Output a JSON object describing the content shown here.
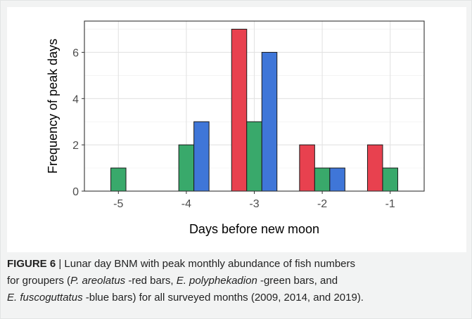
{
  "chart_data": {
    "type": "bar",
    "categories": [
      "-5",
      "-4",
      "-3",
      "-2",
      "-1"
    ],
    "series": [
      {
        "values": [
          0,
          0,
          7,
          2,
          2
        ],
        "color": "#e8414f"
      },
      {
        "values": [
          1,
          2,
          3,
          1,
          1
        ],
        "color": "#39a96b"
      },
      {
        "values": [
          0,
          3,
          6,
          1,
          0
        ],
        "color": "#3f76d8"
      }
    ],
    "xlabel": "Days before new moon",
    "ylabel": "Frequency of peak days",
    "ylim": [
      0,
      7.35
    ],
    "yticks": [
      0,
      2,
      4,
      6
    ],
    "grid": true,
    "legend": "none"
  },
  "caption": {
    "figure_label": "FIGURE 6",
    "separator": "|",
    "text_1": " Lunar day BNM with peak monthly abundance of fish numbers",
    "text_2": "for groupers (",
    "species_1": "P. areolatus",
    "text_3": " -red bars, ",
    "species_2": "E. polyphekadion",
    "text_4": " -green bars, and",
    "species_3": "E. fuscoguttatus",
    "text_5": " -blue bars) for all surveyed months (2009, 2014, and 2019)."
  }
}
